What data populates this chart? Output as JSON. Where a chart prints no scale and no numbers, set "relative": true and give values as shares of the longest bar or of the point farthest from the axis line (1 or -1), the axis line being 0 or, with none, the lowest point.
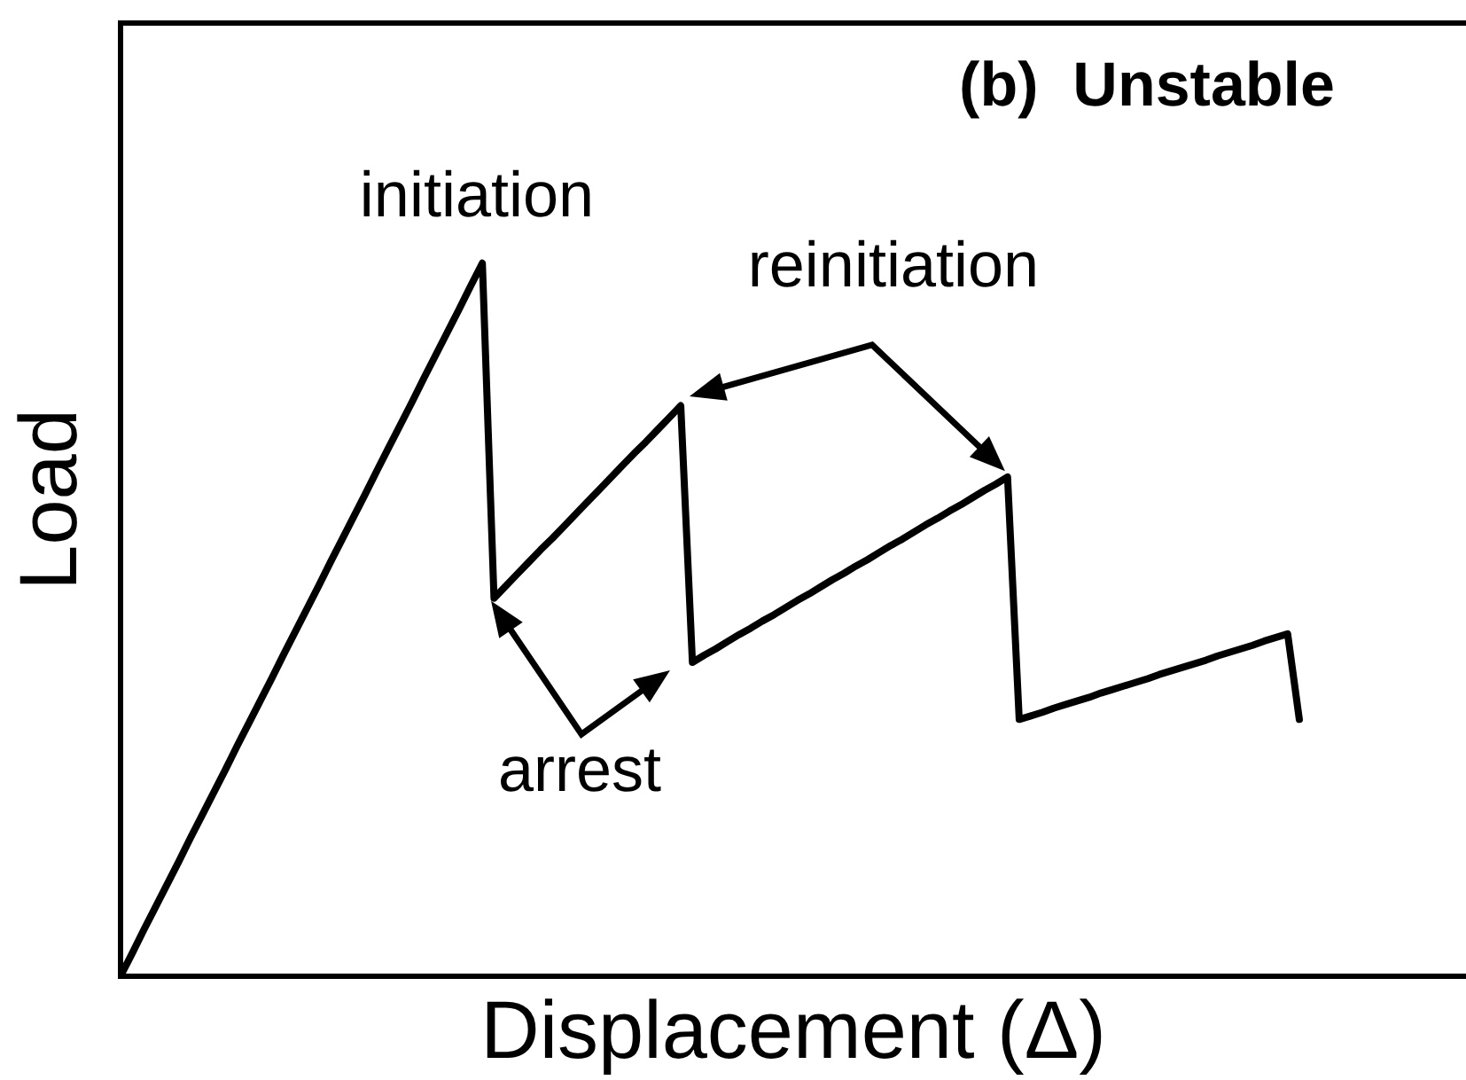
{
  "chart_data": {
    "type": "line",
    "title": "(b)  Unstable",
    "xlabel": "Displacement (Δ)",
    "ylabel": "Load",
    "relative": true,
    "categories": [
      null,
      null,
      null,
      null,
      null,
      null,
      null,
      null,
      null,
      null,
      null,
      null,
      null,
      null,
      null,
      null,
      null,
      null,
      null,
      null,
      null,
      null,
      null,
      null,
      null,
      null,
      null,
      null,
      null,
      null,
      null,
      null,
      null,
      null,
      null,
      null,
      null,
      null,
      null,
      null,
      null,
      null,
      null,
      null,
      null,
      null,
      null,
      null,
      null,
      null,
      null,
      null,
      null,
      null,
      null,
      null,
      null,
      null,
      null,
      null,
      null,
      null,
      null,
      null,
      null,
      null,
      null,
      null,
      null,
      null,
      null,
      null,
      null,
      null,
      null,
      null,
      null,
      null,
      null,
      null,
      null,
      null,
      null,
      null,
      null,
      null,
      null,
      null,
      null,
      null,
      null,
      null,
      null,
      null,
      null,
      null,
      null,
      null,
      null,
      null,
      null,
      null
    ],
    "values": [
      0,
      0.032,
      0.065,
      0.097,
      0.129,
      0.161,
      0.194,
      0.226,
      0.258,
      0.29,
      0.323,
      0.355,
      0.387,
      0.419,
      0.452,
      0.484,
      0.516,
      0.548,
      0.581,
      0.613,
      0.645,
      0.677,
      0.71,
      0.742,
      0.774,
      0.806,
      0.839,
      0.871,
      0.903,
      0.935,
      0.968,
      1,
      0.53,
      0.547,
      0.564,
      0.581,
      0.598,
      0.614,
      0.631,
      0.648,
      0.665,
      0.682,
      0.699,
      0.716,
      0.733,
      0.749,
      0.766,
      0.783,
      0.8,
      0.44,
      0.45,
      0.459,
      0.469,
      0.479,
      0.488,
      0.498,
      0.507,
      0.517,
      0.527,
      0.536,
      0.546,
      0.556,
      0.565,
      0.575,
      0.584,
      0.594,
      0.604,
      0.613,
      0.623,
      0.633,
      0.642,
      0.652,
      0.661,
      0.671,
      0.681,
      0.69,
      0.7,
      0.36,
      0.365,
      0.37,
      0.376,
      0.381,
      0.386,
      0.391,
      0.397,
      0.402,
      0.407,
      0.412,
      0.417,
      0.423,
      0.428,
      0.433,
      0.438,
      0.443,
      0.449,
      0.454,
      0.459,
      0.464,
      0.47,
      0.475,
      0.48,
      0.36
    ],
    "color": "#000000",
    "annotations": [
      "initiation",
      "reinitiation",
      "arrest"
    ],
    "grid": false,
    "legend": false,
    "marker": "none",
    "line_style": "solid"
  }
}
